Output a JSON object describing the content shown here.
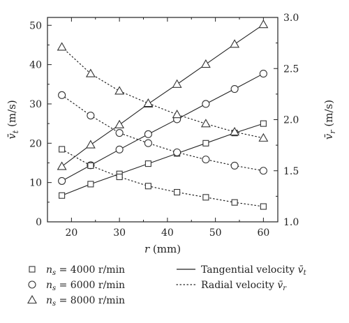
{
  "chart_data": {
    "type": "line",
    "x": [
      18,
      24,
      30,
      36,
      42,
      48,
      54,
      60
    ],
    "xlabel": "r (mm)",
    "xlim": [
      15,
      63
    ],
    "xticks": [
      20,
      30,
      40,
      50,
      60
    ],
    "ylabel_left": "v̄t (m/s)",
    "ylim_left": [
      0,
      52
    ],
    "yticks_left": [
      0,
      10,
      20,
      30,
      40,
      50
    ],
    "ylabel_right": "v̄r (m/s)",
    "ylim_right": [
      1.0,
      3.0
    ],
    "yticks_right": [
      1.0,
      1.5,
      2.0,
      2.5,
      3.0
    ],
    "yticks_right_labels": [
      "1.0",
      "1.5",
      "2.0",
      "2.5",
      "3.0"
    ],
    "series": [
      {
        "name": "ns = 4000 r/min",
        "kind": "tangential",
        "axis": "left",
        "marker": "square",
        "values": [
          6.7,
          9.6,
          12.2,
          14.8,
          17.4,
          20.0,
          22.6,
          25.0
        ]
      },
      {
        "name": "ns = 6000 r/min",
        "kind": "tangential",
        "axis": "left",
        "marker": "circle",
        "values": [
          10.4,
          14.4,
          18.4,
          22.3,
          26.1,
          30.0,
          33.8,
          37.7
        ]
      },
      {
        "name": "ns = 8000 r/min",
        "kind": "tangential",
        "axis": "left",
        "marker": "triangle",
        "values": [
          14.1,
          19.6,
          24.7,
          30.0,
          35.0,
          40.1,
          45.2,
          50.2
        ]
      },
      {
        "name": "ns = 4000 r/min",
        "kind": "radial",
        "axis": "right",
        "marker": "square",
        "values": [
          1.71,
          1.55,
          1.44,
          1.35,
          1.29,
          1.24,
          1.19,
          1.15
        ]
      },
      {
        "name": "ns = 6000 r/min",
        "kind": "radial",
        "axis": "right",
        "marker": "circle",
        "values": [
          2.24,
          2.04,
          1.87,
          1.77,
          1.68,
          1.61,
          1.55,
          1.5
        ]
      },
      {
        "name": "ns = 8000 r/min",
        "kind": "radial",
        "axis": "right",
        "marker": "triangle",
        "values": [
          2.71,
          2.45,
          2.28,
          2.16,
          2.05,
          1.96,
          1.88,
          1.82
        ]
      }
    ],
    "legend": {
      "markers": [
        {
          "marker": "square",
          "symbol": "n",
          "sub": "s",
          "rest": " = 4000 r/min"
        },
        {
          "marker": "circle",
          "symbol": "n",
          "sub": "s",
          "rest": " = 6000 r/min"
        },
        {
          "marker": "triangle",
          "symbol": "n",
          "sub": "s",
          "rest": " = 8000 r/min"
        }
      ],
      "lines": [
        {
          "style": "solid",
          "text": "Tangential velocity ",
          "symbol": "v̄",
          "sub": "t"
        },
        {
          "style": "dotted",
          "text": "Radial velocity ",
          "symbol": "v̄",
          "sub": "r"
        }
      ]
    },
    "grid": false
  }
}
